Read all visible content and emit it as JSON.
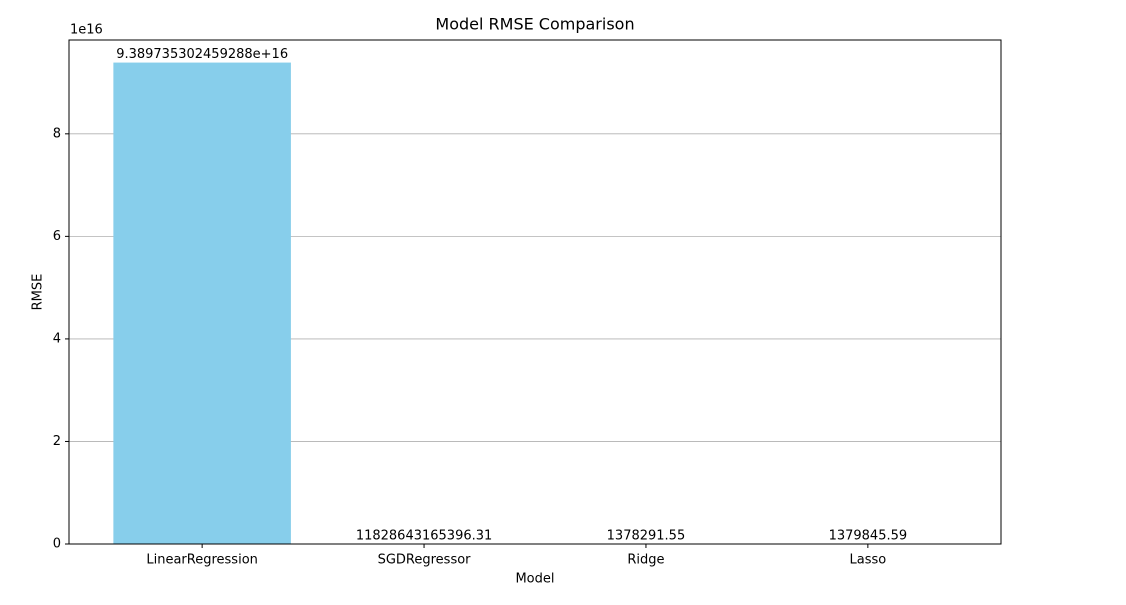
{
  "chart_data": {
    "type": "bar",
    "title": "Model RMSE Comparison",
    "x_label": "Model",
    "y_label": "RMSE",
    "y_offset_label": "1e16",
    "categories": [
      "LinearRegression",
      "SGDRegressor",
      "Ridge",
      "Lasso"
    ],
    "values": [
      9.389735302459288e+16,
      11828643165396.31,
      1378291.55,
      1379845.59
    ],
    "value_labels": [
      "9.389735302459288e+16",
      "11828643165396.31",
      "1378291.55",
      "1379845.59"
    ],
    "color": "#87ceeb",
    "ylim": [
      0,
      9.83e+16
    ],
    "yticks": [
      0,
      {
        "value": 2e+16,
        "label": "2"
      },
      {
        "value": 4e+16,
        "label": "4"
      },
      {
        "value": 6e+16,
        "label": "6"
      },
      {
        "value": 8e+16,
        "label": "8"
      }
    ],
    "grid": true
  }
}
